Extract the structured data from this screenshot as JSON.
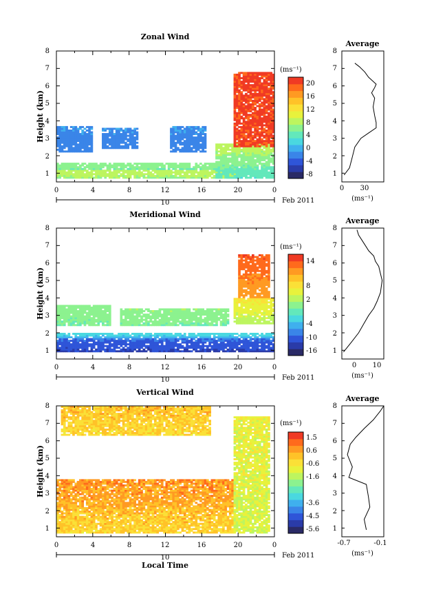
{
  "colors": {
    "palette": [
      "#2a2a66",
      "#2a3ba8",
      "#2f55d8",
      "#3a85e8",
      "#3fb0ee",
      "#4ad8e0",
      "#63e8bb",
      "#8cf28f",
      "#bdf55f",
      "#e8f23c",
      "#fbe037",
      "#ffc228",
      "#ff9a22",
      "#ff6a1c",
      "#f03a24"
    ]
  },
  "charts": [
    {
      "title": "Zonal Wind",
      "ylabel": "Height (km)",
      "yticks": [
        "1",
        "2",
        "3",
        "4",
        "5",
        "6",
        "7",
        "8"
      ],
      "xticks": [
        "0",
        "4",
        "8",
        "12",
        "16",
        "20",
        "0"
      ],
      "date_day": "10",
      "date_month": "Feb 2011",
      "unit": "(ms⁻¹)",
      "cbar_labels": [
        "20",
        "16",
        "12",
        "8",
        "4",
        "0",
        "-4",
        "-8"
      ],
      "avg_title": "Average",
      "avg_xticks": [
        "0",
        "30"
      ],
      "avg_unit": "(ms⁻¹)",
      "avg_xlim": [
        -5,
        50
      ]
    },
    {
      "title": "Meridional Wind",
      "ylabel": "Height (km)",
      "yticks": [
        "1",
        "2",
        "3",
        "4",
        "5",
        "6",
        "7",
        "8"
      ],
      "xticks": [
        "0",
        "4",
        "8",
        "12",
        "16",
        "20",
        "0"
      ],
      "date_day": "10",
      "date_month": "Feb 2011",
      "unit": "(ms⁻¹)",
      "cbar_labels": [
        "14",
        "8",
        "2",
        "-4",
        "-10",
        "-16"
      ],
      "cbar_labels_b": [
        "14",
        "8",
        "2",
        "-4",
        "-10",
        "-16"
      ],
      "avg_title": "Average",
      "avg_xticks": [
        "0",
        "10"
      ],
      "avg_unit": "(ms⁻¹)",
      "avg_xlim": [
        -10,
        15
      ]
    },
    {
      "title": "Vertical Wind",
      "ylabel": "Height (km)",
      "yticks": [
        "1",
        "2",
        "3",
        "4",
        "5",
        "6",
        "7",
        "8"
      ],
      "xticks": [
        "0",
        "4",
        "8",
        "12",
        "16",
        "20",
        "0"
      ],
      "date_day": "10",
      "date_month": "Feb 2011",
      "unit": "(ms⁻¹)",
      "cbar_labels": [
        "1.5",
        "0.6",
        "-0.6",
        "-1.6",
        "-3.6",
        "-4.5",
        "-5.6"
      ],
      "avg_title": "Average",
      "avg_xticks": [
        "-0.7",
        "-0.1"
      ],
      "avg_unit": "(ms⁻¹)",
      "avg_xlim": [
        -0.7,
        -0.1
      ]
    }
  ],
  "xlabel": "Local Time",
  "chart_data": [
    {
      "type": "heatmap",
      "title": "Zonal Wind",
      "ylabel": "Height (km)",
      "xlim": [
        0,
        24
      ],
      "ylim": [
        0.5,
        8
      ],
      "clim": [
        -10,
        24
      ],
      "regions": [
        {
          "t0": 0,
          "t1": 21,
          "h0": 0.7,
          "h1": 1.2,
          "v0": 8,
          "v1": 10
        },
        {
          "t0": 0,
          "t1": 19,
          "h0": 1.2,
          "h1": 1.6,
          "v0": 6,
          "v1": 8
        },
        {
          "t0": 0,
          "t1": 4,
          "h0": 2.2,
          "h1": 3.7,
          "v0": -2,
          "v1": -1
        },
        {
          "t0": 5,
          "t1": 9,
          "h0": 2.4,
          "h1": 3.6,
          "v0": -2,
          "v1": -1
        },
        {
          "t0": 12.5,
          "t1": 16.5,
          "h0": 2.2,
          "h1": 3.7,
          "v0": -2,
          "v1": -1
        },
        {
          "t0": 17.5,
          "t1": 24,
          "h0": 0.7,
          "h1": 2.7,
          "v0": 4,
          "v1": 10
        },
        {
          "t0": 19.5,
          "t1": 24,
          "h0": 2.5,
          "h1": 6.8,
          "v0": 22,
          "v1": 22
        }
      ],
      "average_profile": {
        "x": [
          -2,
          5,
          8,
          12,
          20,
          30,
          40,
          40,
          38,
          36,
          38,
          34,
          38,
          40,
          35,
          30,
          25,
          18,
          12
        ],
        "y": [
          0.9,
          1.3,
          1.8,
          2.5,
          3.0,
          3.3,
          3.6,
          3.9,
          4.3,
          4.8,
          5.3,
          5.6,
          5.9,
          6.1,
          6.3,
          6.5,
          6.8,
          7.1,
          7.3
        ]
      }
    },
    {
      "type": "heatmap",
      "title": "Meridional Wind",
      "ylabel": "Height (km)",
      "xlim": [
        0,
        24
      ],
      "ylim": [
        0.5,
        8
      ],
      "clim": [
        -16,
        16
      ],
      "regions": [
        {
          "t0": 0,
          "t1": 24,
          "h0": 0.9,
          "h1": 1.7,
          "v0": -12,
          "v1": -9
        },
        {
          "t0": 0,
          "t1": 24,
          "h0": 1.7,
          "h1": 2.0,
          "v0": -6,
          "v1": -3
        },
        {
          "t0": 0,
          "t1": 6,
          "h0": 2.4,
          "h1": 3.6,
          "v0": -1,
          "v1": 0
        },
        {
          "t0": 7,
          "t1": 19,
          "h0": 2.4,
          "h1": 3.4,
          "v0": -1,
          "v1": 1
        },
        {
          "t0": 19.5,
          "t1": 24,
          "h0": 2.5,
          "h1": 4.0,
          "v0": 2,
          "v1": 6
        },
        {
          "t0": 20,
          "t1": 23.5,
          "h0": 4.0,
          "h1": 6.5,
          "v0": 10,
          "v1": 14
        }
      ],
      "average_profile": {
        "x": [
          -9,
          -4,
          0,
          3,
          6,
          9,
          11,
          13,
          14,
          13,
          12,
          10,
          9,
          6,
          4,
          2,
          0,
          -1
        ],
        "y": [
          0.9,
          1.5,
          2.0,
          2.5,
          3.0,
          3.4,
          3.8,
          4.3,
          5.0,
          5.4,
          5.8,
          6.1,
          6.4,
          6.7,
          7.0,
          7.3,
          7.6,
          7.9
        ]
      }
    },
    {
      "type": "heatmap",
      "title": "Vertical Wind",
      "ylabel": "Height (km)",
      "xlim": [
        0,
        24
      ],
      "ylim": [
        0.5,
        8
      ],
      "clim": [
        -6,
        2
      ],
      "regions": [
        {
          "t0": 0,
          "t1": 19.5,
          "h0": 0.7,
          "h1": 2.2,
          "v0": -0.2,
          "v1": 0.2
        },
        {
          "t0": 0,
          "t1": 19.5,
          "h0": 2.2,
          "h1": 3.8,
          "v0": 0.4,
          "v1": 0.7
        },
        {
          "t0": 0.5,
          "t1": 17,
          "h0": 6.3,
          "h1": 8.0,
          "v0": -0.3,
          "v1": 0.1
        },
        {
          "t0": 19.5,
          "t1": 23.5,
          "h0": 0.7,
          "h1": 7.4,
          "v0": -1.2,
          "v1": -0.8
        }
      ],
      "average_profile": {
        "x": [
          -0.35,
          -0.38,
          -0.3,
          -0.32,
          -0.35,
          -0.6,
          -0.55,
          -0.62,
          -0.58,
          -0.5,
          -0.38,
          -0.25,
          -0.15,
          -0.1
        ],
        "y": [
          0.9,
          1.5,
          2.2,
          2.8,
          3.5,
          3.9,
          4.5,
          5.2,
          5.8,
          6.2,
          6.7,
          7.2,
          7.7,
          8.0
        ]
      }
    }
  ]
}
